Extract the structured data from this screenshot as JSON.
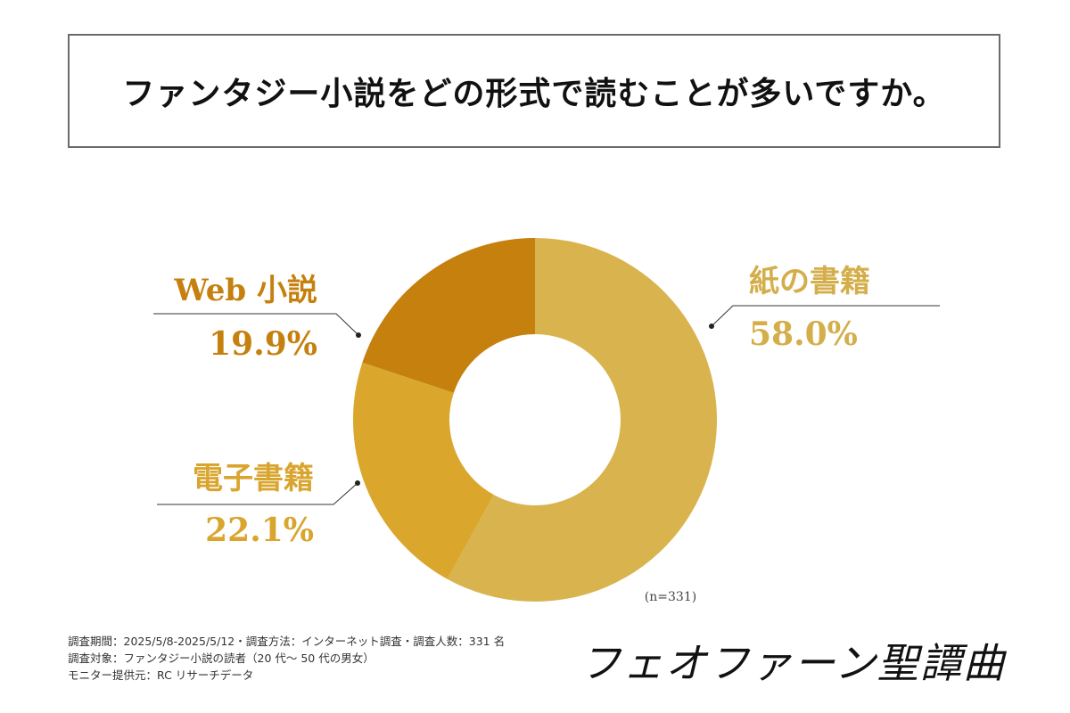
{
  "title": "ファンタジー小説をどの形式で読むことが多いですか。",
  "chart_data": {
    "type": "pie",
    "variant": "donut",
    "title": "ファンタジー小説をどの形式で読むことが多いですか。",
    "sample_size_label": "(n=331)",
    "slices": [
      {
        "label": "紙の書籍",
        "value": 58.0,
        "value_label": "58.0%",
        "color": "#D9B34E",
        "label_color": "#D4AE4A"
      },
      {
        "label": "電子書籍",
        "value": 22.1,
        "value_label": "22.1%",
        "color": "#DBA62C",
        "label_color": "#D9A52E"
      },
      {
        "label": "Web 小説",
        "value": 19.9,
        "value_label": "19.9%",
        "color": "#C5800E",
        "label_color": "#C5800E"
      }
    ]
  },
  "footer": {
    "line1": "調査期間：2025/5/8-2025/5/12・調査方法：インターネット調査・調査人数：331 名",
    "line2": "調査対象：ファンタジー小説の読者（20 代～ 50 代の男女）",
    "line3": "モニター提供元：RC リサーチデータ"
  },
  "brand": "フェオファーン聖譚曲"
}
